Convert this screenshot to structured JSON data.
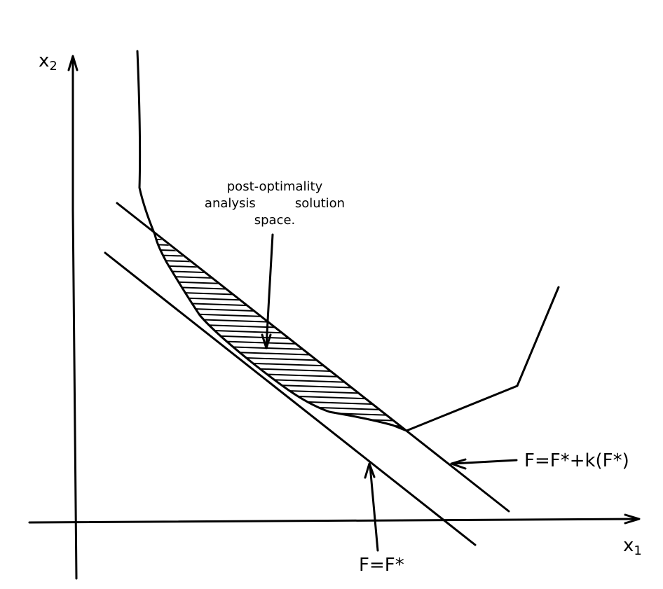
{
  "axes": {
    "x_label": "x",
    "x_subscript": "1",
    "y_label": "x",
    "y_subscript": "2"
  },
  "lines": {
    "optimal_label": "F=F*",
    "offset_label": "F=F*+k(F*)"
  },
  "region": {
    "line1": "post-optimality",
    "line2a": "analysis",
    "line2b": "solution",
    "line3": "space."
  },
  "colors": {
    "ink": "#000000",
    "background": "#ffffff"
  }
}
